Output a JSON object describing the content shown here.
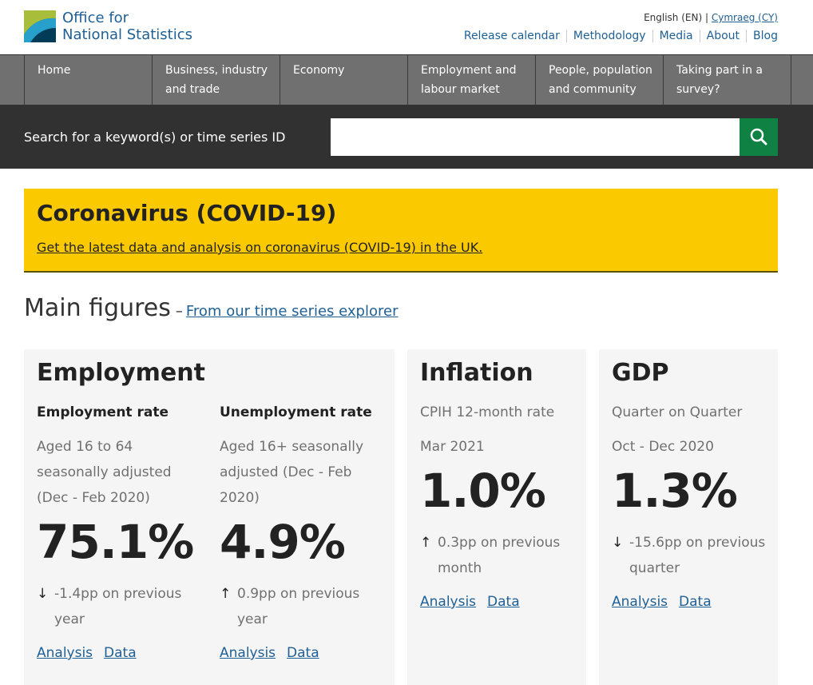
{
  "header": {
    "logo": [
      "Office for",
      "National Statistics"
    ],
    "language": {
      "current": "English (EN)",
      "separator": "|",
      "other": "Cymraeg (CY)"
    },
    "links": [
      "Release calendar",
      "Methodology",
      "Media",
      "About",
      "Blog"
    ]
  },
  "nav": [
    "Home",
    "Business, industry and trade",
    "Economy",
    "Employment and labour market",
    "People, population and community",
    "Taking part in a survey?"
  ],
  "search": {
    "label": "Search for a keyword(s) or time series ID"
  },
  "banner": {
    "title": "Coronavirus (COVID-19)",
    "link": "Get the latest data and analysis on coronavirus (COVID-19) in the UK."
  },
  "main_figures": {
    "title": "Main figures",
    "separator": "–",
    "link": "From our time series explorer"
  },
  "cards": [
    {
      "title": "Employment",
      "figures": [
        {
          "label": "Employment rate",
          "description": "Aged 16 to 64 seasonally adjusted (Dec - Feb 2020)",
          "value": "75.1%",
          "arrow": "↓",
          "change": "-1.4pp on previous year",
          "links": [
            "Analysis",
            "Data"
          ]
        },
        {
          "label": "Unemployment rate",
          "description": "Aged 16+ seasonally adjusted (Dec - Feb 2020)",
          "value": "4.9%",
          "arrow": "↑",
          "change": "0.9pp on previous year",
          "links": [
            "Analysis",
            "Data"
          ]
        }
      ]
    },
    {
      "title": "Inflation",
      "figures": [
        {
          "label": "CPIH 12-month rate",
          "description": "Mar 2021",
          "value": "1.0%",
          "arrow": "↑",
          "change": "0.3pp on previous month",
          "links": [
            "Analysis",
            "Data"
          ]
        }
      ]
    },
    {
      "title": "GDP",
      "figures": [
        {
          "label": "Quarter on Quarter",
          "description": "Oct - Dec 2020",
          "value": "1.3%",
          "arrow": "↓",
          "change": "-15.6pp on previous quarter",
          "links": [
            "Analysis",
            "Data"
          ]
        }
      ]
    }
  ]
}
